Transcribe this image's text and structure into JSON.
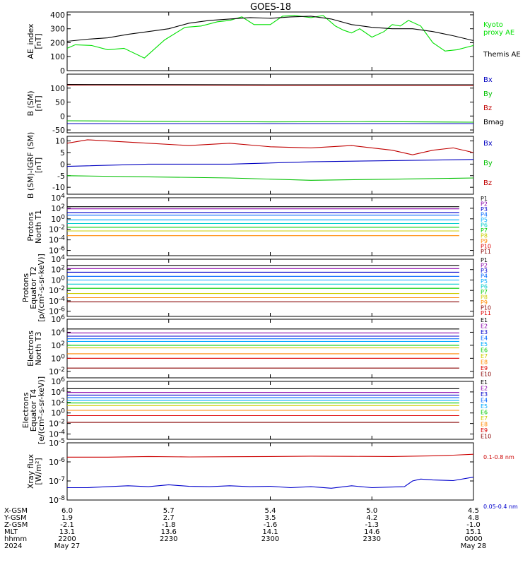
{
  "title": "GOES-18",
  "chart_data": [
    {
      "type": "line",
      "ylabel": "AE_index\n[nT]",
      "ylim": [
        0,
        420
      ],
      "ytick_labels": [
        "0",
        "100",
        "200",
        "300",
        "400"
      ],
      "series": [
        {
          "name": "Kyoto\nproxy AE",
          "color": "#00e000",
          "x": [
            0,
            0.02,
            0.06,
            0.1,
            0.14,
            0.19,
            0.24,
            0.29,
            0.33,
            0.37,
            0.4,
            0.43,
            0.46,
            0.5,
            0.53,
            0.56,
            0.6,
            0.63,
            0.66,
            0.68,
            0.7,
            0.72,
            0.75,
            0.78,
            0.8,
            0.82,
            0.84,
            0.87,
            0.9,
            0.93,
            0.96,
            1
          ],
          "y": [
            160,
            185,
            180,
            150,
            160,
            90,
            220,
            310,
            320,
            350,
            360,
            385,
            330,
            330,
            390,
            395,
            380,
            395,
            320,
            290,
            270,
            300,
            240,
            280,
            330,
            320,
            360,
            320,
            200,
            140,
            150,
            180
          ]
        },
        {
          "name": "Themis AE",
          "color": "#000000",
          "x": [
            0,
            0.05,
            0.1,
            0.15,
            0.2,
            0.25,
            0.3,
            0.35,
            0.4,
            0.45,
            0.5,
            0.55,
            0.6,
            0.65,
            0.7,
            0.75,
            0.8,
            0.85,
            0.9,
            0.95,
            1
          ],
          "y": [
            210,
            225,
            235,
            260,
            280,
            300,
            340,
            360,
            370,
            380,
            375,
            385,
            390,
            370,
            330,
            310,
            300,
            300,
            280,
            250,
            215
          ]
        }
      ]
    },
    {
      "type": "line",
      "ylabel": "B (SM)\n[nT]",
      "ylim": [
        -60,
        150
      ],
      "ytick_labels": [
        "-50",
        "0",
        "50",
        "100"
      ],
      "series": [
        {
          "name": "Bx",
          "color": "#0000c0",
          "x": [
            0,
            1
          ],
          "y": [
            -27,
            -27
          ]
        },
        {
          "name": "By",
          "color": "#00c000",
          "x": [
            0,
            0.25,
            0.5,
            0.75,
            1
          ],
          "y": [
            -17,
            -19,
            -21,
            -20,
            -22
          ]
        },
        {
          "name": "Bz",
          "color": "#c00000",
          "x": [
            0,
            0.5,
            1
          ],
          "y": [
            111,
            110,
            110
          ]
        },
        {
          "name": "Bmag",
          "color": "#000000",
          "x": [
            0,
            0.5,
            1
          ],
          "y": [
            113,
            112,
            112
          ]
        }
      ]
    },
    {
      "type": "line",
      "ylabel": "B (SM)-IGRF (SM)\n[nT]",
      "ylim": [
        -13,
        12
      ],
      "ytick_labels": [
        "-10",
        "-5",
        "0",
        "5",
        "10"
      ],
      "series": [
        {
          "name": "Bx",
          "color": "#0000c0",
          "x": [
            0,
            0.2,
            0.4,
            0.6,
            0.8,
            1
          ],
          "y": [
            -1,
            0,
            0,
            1,
            1.5,
            2
          ]
        },
        {
          "name": "By",
          "color": "#00c000",
          "x": [
            0,
            0.2,
            0.4,
            0.6,
            0.8,
            1
          ],
          "y": [
            -5,
            -5.5,
            -6,
            -7,
            -6.5,
            -6
          ]
        },
        {
          "name": "Bz",
          "color": "#c00000",
          "x": [
            0,
            0.05,
            0.1,
            0.2,
            0.3,
            0.4,
            0.5,
            0.6,
            0.7,
            0.8,
            0.85,
            0.9,
            0.95,
            1
          ],
          "y": [
            9,
            10.5,
            10,
            9,
            8,
            9,
            7.5,
            7,
            8,
            6,
            4,
            6,
            7,
            5
          ]
        }
      ]
    },
    {
      "type": "line",
      "log": true,
      "ylabel": "Protons\nNorth T1",
      "ylim_exp": [
        -7,
        4
      ],
      "ytick_labels": [
        "10^-6",
        "10^-4",
        "10^-2",
        "10^0",
        "10^2",
        "10^4"
      ],
      "series": [
        {
          "name": "P1",
          "color": "#000000",
          "y": [
            2.3
          ]
        },
        {
          "name": "P2",
          "color": "#8800aa",
          "y": [
            1.9
          ]
        },
        {
          "name": "P3",
          "color": "#0000cc",
          "y": [
            1.2
          ]
        },
        {
          "name": "P4",
          "color": "#0066ff",
          "y": [
            0.7
          ]
        },
        {
          "name": "P5",
          "color": "#00aaff",
          "y": [
            -0.2
          ]
        },
        {
          "name": "P6",
          "color": "#00cccc",
          "y": [
            -0.9
          ]
        },
        {
          "name": "P7",
          "color": "#00cc00",
          "y": [
            -1.6
          ]
        },
        {
          "name": "P8",
          "color": "#cccc00",
          "y": [
            -2.3
          ]
        },
        {
          "name": "P9",
          "color": "#ff8800",
          "y": [
            -3.2
          ]
        },
        {
          "name": "P10",
          "color": "#dd0000",
          "y": []
        },
        {
          "name": "P11",
          "color": "#880000",
          "y": []
        }
      ]
    },
    {
      "type": "line",
      "log": true,
      "ylabel": "Protons\nEquator T2\n[p/(cm²-s-sr-keV)]",
      "ylim_exp": [
        -7,
        4
      ],
      "ytick_labels": [
        "10^-6",
        "10^-4",
        "10^-2",
        "10^0",
        "10^2",
        "10^4"
      ],
      "series": [
        {
          "name": "P1",
          "color": "#000000",
          "y": [
            2.8
          ]
        },
        {
          "name": "P2",
          "color": "#8800aa",
          "y": [
            2.2
          ]
        },
        {
          "name": "P3",
          "color": "#0000cc",
          "y": [
            1.5
          ]
        },
        {
          "name": "P4",
          "color": "#0066ff",
          "y": [
            0.7
          ]
        },
        {
          "name": "P5",
          "color": "#00aaff",
          "y": [
            0.0
          ]
        },
        {
          "name": "P6",
          "color": "#00cccc",
          "y": [
            -0.8
          ]
        },
        {
          "name": "P7",
          "color": "#00cc00",
          "y": [
            -1.6
          ]
        },
        {
          "name": "P8",
          "color": "#cccc00",
          "y": [
            -2.6
          ]
        },
        {
          "name": "P9",
          "color": "#ff8800",
          "y": [
            -3.4
          ]
        },
        {
          "name": "P10",
          "color": "#880000",
          "y": [
            -4.2
          ]
        },
        {
          "name": "P11",
          "color": "#dd0000",
          "y": []
        }
      ]
    },
    {
      "type": "line",
      "log": true,
      "ylabel": "Electrons\nNorth T3",
      "ylim_exp": [
        -3,
        6
      ],
      "ytick_labels": [
        "10^-2",
        "10^0",
        "10^2",
        "10^4",
        "10^6"
      ],
      "series": [
        {
          "name": "E1",
          "color": "#000000",
          "y": [
            4.5
          ]
        },
        {
          "name": "E2",
          "color": "#8800aa",
          "y": [
            3.9
          ]
        },
        {
          "name": "E3",
          "color": "#0000cc",
          "y": [
            3.4
          ]
        },
        {
          "name": "E4",
          "color": "#0066ff",
          "y": [
            3.0
          ]
        },
        {
          "name": "E5",
          "color": "#00aaff",
          "y": [
            2.6
          ]
        },
        {
          "name": "E6",
          "color": "#00cc00",
          "y": [
            2.0
          ]
        },
        {
          "name": "E7",
          "color": "#cccc00",
          "y": [
            1.6
          ]
        },
        {
          "name": "E8",
          "color": "#ff8800",
          "y": [
            0.7
          ]
        },
        {
          "name": "E9",
          "color": "#dd0000",
          "y": [
            0.0
          ]
        },
        {
          "name": "E10",
          "color": "#880000",
          "y": [
            -1.5
          ]
        }
      ]
    },
    {
      "type": "line",
      "log": true,
      "ylabel": "Electrons\nEquator T4\n[e/(cm²-s-sr-keV)]",
      "ylim_exp": [
        -5,
        6
      ],
      "ytick_labels": [
        "10^-4",
        "10^-2",
        "10^0",
        "10^2",
        "10^4",
        "10^6"
      ],
      "series": [
        {
          "name": "E1",
          "color": "#000000",
          "y": [
            4.6
          ]
        },
        {
          "name": "E2",
          "color": "#8800aa",
          "y": [
            3.9
          ]
        },
        {
          "name": "E3",
          "color": "#0000cc",
          "y": [
            3.4
          ]
        },
        {
          "name": "E4",
          "color": "#0066ff",
          "y": [
            2.9
          ]
        },
        {
          "name": "E5",
          "color": "#00aaff",
          "y": [
            2.4
          ]
        },
        {
          "name": "E6",
          "color": "#00cc00",
          "y": [
            1.9
          ]
        },
        {
          "name": "E7",
          "color": "#cccc00",
          "y": [
            1.4
          ]
        },
        {
          "name": "E8",
          "color": "#ff8800",
          "y": [
            0.5
          ]
        },
        {
          "name": "E9",
          "color": "#dd0000",
          "y": [
            -0.5
          ]
        },
        {
          "name": "E10",
          "color": "#880000",
          "y": [
            -1.8
          ]
        }
      ]
    },
    {
      "type": "line",
      "log": true,
      "ylabel": "Xray flux\n[W/m²]",
      "ylim_exp": [
        -8,
        -5
      ],
      "ytick_labels": [
        "10^-8",
        "10^-7",
        "10^-6",
        "10^-5"
      ],
      "series": [
        {
          "name": "0.1-0.8 nm",
          "color": "#cc0000",
          "x": [
            0,
            0.1,
            0.2,
            0.3,
            0.4,
            0.5,
            0.6,
            0.7,
            0.8,
            0.9,
            0.95,
            1
          ],
          "y": [
            -5.75,
            -5.75,
            -5.72,
            -5.74,
            -5.73,
            -5.72,
            -5.7,
            -5.71,
            -5.72,
            -5.68,
            -5.65,
            -5.6
          ]
        },
        {
          "name": "0.05-0.4 nm",
          "color": "#0000cc",
          "x": [
            0,
            0.05,
            0.1,
            0.15,
            0.2,
            0.25,
            0.3,
            0.35,
            0.4,
            0.45,
            0.5,
            0.55,
            0.6,
            0.65,
            0.7,
            0.75,
            0.8,
            0.83,
            0.85,
            0.87,
            0.9,
            0.95,
            1
          ],
          "y": [
            -7.35,
            -7.35,
            -7.3,
            -7.25,
            -7.3,
            -7.2,
            -7.28,
            -7.3,
            -7.25,
            -7.3,
            -7.28,
            -7.35,
            -7.3,
            -7.38,
            -7.25,
            -7.35,
            -7.32,
            -7.3,
            -7.0,
            -6.9,
            -6.95,
            -6.98,
            -6.8
          ]
        }
      ]
    }
  ],
  "x_axis": {
    "row_labels": [
      "X-GSM",
      "Y-GSM",
      "Z-GSM",
      "MLT",
      "hhmm",
      "2024"
    ],
    "ticks": [
      {
        "x": 0.0,
        "values": [
          "6.0",
          "1.9",
          "-2.1",
          "13.1",
          "2200",
          "May 27"
        ]
      },
      {
        "x": 0.25,
        "values": [
          "5.7",
          "2.7",
          "-1.8",
          "13.6",
          "2230",
          ""
        ]
      },
      {
        "x": 0.5,
        "values": [
          "5.4",
          "3.5",
          "-1.6",
          "14.1",
          "2300",
          ""
        ]
      },
      {
        "x": 0.75,
        "values": [
          "5.0",
          "4.2",
          "-1.3",
          "14.6",
          "2330",
          ""
        ]
      },
      {
        "x": 1.0,
        "values": [
          "4.5",
          "4.8",
          "-1.0",
          "15.1",
          "0000",
          "May 28"
        ]
      }
    ]
  }
}
